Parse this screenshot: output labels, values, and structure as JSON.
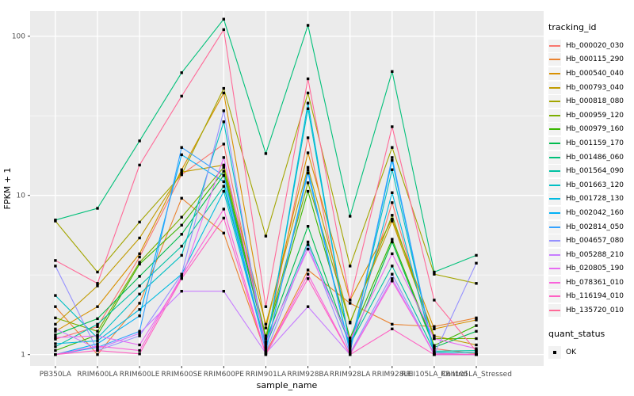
{
  "figure": {
    "background": "#FFFFFF",
    "panel_background": "#EBEBEB",
    "gridline_color": "#FFFFFF",
    "axis_text_color": "#4D4D4D",
    "tick_mark_color": "#333333",
    "point_color": "#000000",
    "point_shape": "square"
  },
  "chart_data": {
    "type": "line",
    "title": "",
    "xlabel": "sample_name",
    "ylabel": "FPKM + 1",
    "y_scale": "log10",
    "y_ticks": [
      1,
      10,
      100
    ],
    "y_minor_breaks": [
      3.1623,
      31.623
    ],
    "ylim": [
      0.85,
      144
    ],
    "grid": true,
    "legend_position": "right",
    "categories": [
      "PB350LA",
      "RRIM600LA",
      "RRIM600LE",
      "RRIM600SE",
      "RRIM600PE",
      "RRIM901LA",
      "RRIM928BA",
      "RRIM928LA",
      "RRIM928LE",
      "RRII105LA_Control",
      "RRII105LA_Stressed"
    ],
    "legend_tracking_title": "tracking_id",
    "legend_quant_title": "quant_status",
    "quant_status_items": [
      {
        "label": "OK",
        "marker": "black-square"
      }
    ],
    "series": [
      {
        "name": "Hb_000020_030",
        "color": "#F8766D",
        "values": [
          1.25,
          1.5,
          4.1,
          13.5,
          21,
          1.17,
          23,
          1.2,
          9.0,
          1.09,
          1.01
        ]
      },
      {
        "name": "Hb_000115_290",
        "color": "#EA8331",
        "values": [
          2.0,
          1.0,
          2.1,
          9.6,
          5.8,
          1.02,
          3.4,
          2.1,
          1.55,
          1.5,
          1.7
        ]
      },
      {
        "name": "Hb_000540_040",
        "color": "#D89000",
        "values": [
          1.4,
          2.0,
          4.3,
          14.5,
          44,
          1.47,
          18.5,
          2.2,
          7.1,
          1.45,
          1.65
        ]
      },
      {
        "name": "Hb_000793_040",
        "color": "#C09B00",
        "values": [
          1.55,
          2.7,
          5.4,
          14.0,
          15.5,
          1.55,
          15,
          1.6,
          6.9,
          1.31,
          1.15
        ]
      },
      {
        "name": "Hb_000818_080",
        "color": "#A3A500",
        "values": [
          6.9,
          3.3,
          6.8,
          13.5,
          47,
          5.55,
          44,
          3.6,
          20,
          3.2,
          2.8
        ]
      },
      {
        "name": "Hb_000959_120",
        "color": "#7CAE00",
        "values": [
          1.7,
          1.4,
          3.8,
          7.3,
          15,
          1.31,
          12,
          1.58,
          7.5,
          1.26,
          1.26
        ]
      },
      {
        "name": "Hb_000979_160",
        "color": "#39B600",
        "values": [
          1.06,
          1.33,
          3.7,
          6.5,
          14.2,
          1.26,
          10.6,
          1.27,
          5.3,
          1.14,
          1.52
        ]
      },
      {
        "name": "Hb_001159_170",
        "color": "#00BB4E",
        "values": [
          1.33,
          1.68,
          3.1,
          5.7,
          13.4,
          1.21,
          6.4,
          1.13,
          5.1,
          1.11,
          1.4
        ]
      },
      {
        "name": "Hb_001486_060",
        "color": "#00C079",
        "values": [
          7.0,
          8.3,
          22,
          59,
          128,
          18.3,
          117,
          7.4,
          60,
          3.3,
          4.2
        ]
      },
      {
        "name": "Hb_001564_090",
        "color": "#00C1A2",
        "values": [
          1.12,
          1.55,
          2.7,
          4.8,
          11.4,
          1.13,
          5.1,
          1.16,
          3.6,
          1.05,
          1.06
        ]
      },
      {
        "name": "Hb_001663_120",
        "color": "#00BFC4",
        "values": [
          2.35,
          1.27,
          2.4,
          4.2,
          29,
          1.11,
          35,
          1.11,
          14.5,
          1.03,
          1.03
        ]
      },
      {
        "name": "Hb_001728_130",
        "color": "#00BAE0",
        "values": [
          1.17,
          1.22,
          1.92,
          3.2,
          10.6,
          1.09,
          38,
          1.09,
          10.4,
          1.02,
          1.0
        ]
      },
      {
        "name": "Hb_002042_160",
        "color": "#00B0F6",
        "values": [
          1.0,
          1.17,
          1.75,
          18,
          12.2,
          1.05,
          14.4,
          1.05,
          16.6,
          1.0,
          1.0
        ]
      },
      {
        "name": "Hb_002814_050",
        "color": "#35A2FF",
        "values": [
          1.0,
          1.11,
          1.4,
          20,
          13.3,
          1.05,
          13.8,
          1.03,
          17.3,
          1.0,
          1.0
        ]
      },
      {
        "name": "Hb_004657_080",
        "color": "#9590FF",
        "values": [
          3.6,
          1.06,
          1.31,
          3.2,
          34,
          1.03,
          4.9,
          1.02,
          3.2,
          1.0,
          3.75
        ]
      },
      {
        "name": "Hb_005288_210",
        "color": "#C77CFF",
        "values": [
          1.45,
          1.09,
          1.36,
          2.5,
          2.5,
          1.02,
          2.0,
          1.0,
          3.0,
          1.0,
          1.0
        ]
      },
      {
        "name": "Hb_020805_190",
        "color": "#E76BF3",
        "values": [
          1.28,
          1.31,
          1.15,
          3.0,
          17.3,
          1.19,
          4.6,
          1.22,
          4.3,
          1.26,
          1.09
        ]
      },
      {
        "name": "Hb_078361_010",
        "color": "#FA62DB",
        "values": [
          1.0,
          1.13,
          1.06,
          3.1,
          8.2,
          1.0,
          3.2,
          1.0,
          2.9,
          1.02,
          1.0
        ]
      },
      {
        "name": "Hb_116194_010",
        "color": "#FF61C3",
        "values": [
          1.0,
          1.06,
          1.01,
          3.0,
          7.2,
          1.0,
          3.0,
          1.0,
          1.45,
          1.0,
          1.0
        ]
      },
      {
        "name": "Hb_135720_010",
        "color": "#FF6A98",
        "values": [
          3.9,
          2.8,
          15.5,
          42,
          110,
          2.0,
          54,
          2.2,
          27,
          2.2,
          1.05
        ]
      }
    ]
  }
}
